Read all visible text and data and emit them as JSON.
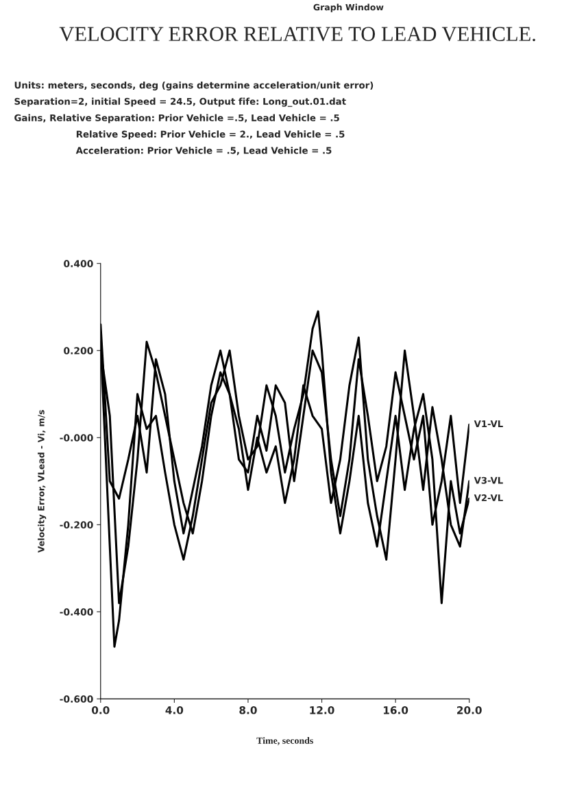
{
  "chart_data": {
    "type": "line",
    "title": "VELOCITY ERROR RELATIVE TO LEAD VEHICLE.",
    "annotations": [
      "Graph Window",
      "Units: meters, seconds, deg (gains determine acceleration/unit error)",
      "Separation=2, initial Speed = 24.5, Output fife: Long_out.01.dat",
      "Gains, Relative Separation: Prior Vehicle =.5, Lead Vehicle = .5",
      "Relative Speed: Prior Vehicle = 2., Lead Vehicle = .5",
      "Acceleration: Prior Vehicle = .5, Lead Vehicle = .5"
    ],
    "xlabel": "Time, seconds",
    "ylabel": "Velocity Error, VLead - Vi, m/s",
    "xlim": [
      0,
      20
    ],
    "ylim": [
      -0.6,
      0.4
    ],
    "xticks": [
      {
        "value": 0,
        "label": "0.0"
      },
      {
        "value": 4,
        "label": "4.0"
      },
      {
        "value": 8,
        "label": "8.0"
      },
      {
        "value": 12,
        "label": "12.0"
      },
      {
        "value": 16,
        "label": "16.0"
      },
      {
        "value": 20,
        "label": "20.0"
      }
    ],
    "yticks": [
      {
        "value": -0.6,
        "label": "-0.600"
      },
      {
        "value": -0.4,
        "label": "-0.400"
      },
      {
        "value": -0.2,
        "label": "-0.200"
      },
      {
        "value": 0,
        "label": "-0.000"
      },
      {
        "value": 0.2,
        "label": "0.200"
      },
      {
        "value": 0.4,
        "label": "0.400"
      }
    ],
    "grid": false,
    "legend": false,
    "marker": "none",
    "line_style": "solid",
    "series": [
      {
        "name": "V1-VL",
        "color": "#000000",
        "x": [
          0,
          0.5,
          1,
          1.5,
          2,
          2.5,
          3,
          3.5,
          4,
          4.5,
          5,
          5.5,
          6,
          6.5,
          7,
          7.5,
          8,
          8.5,
          9,
          9.5,
          10,
          10.5,
          11,
          11.5,
          12,
          12.5,
          13,
          13.5,
          14,
          14.5,
          15,
          15.5,
          16,
          16.5,
          17,
          17.5,
          18,
          18.5,
          19,
          19.5,
          20
        ],
        "values": [
          0.26,
          -0.1,
          -0.14,
          -0.05,
          0.05,
          -0.08,
          0.18,
          0.1,
          -0.1,
          -0.22,
          -0.12,
          -0.02,
          0.12,
          0.2,
          0.1,
          -0.05,
          -0.08,
          0.05,
          -0.03,
          0.12,
          0.08,
          -0.1,
          0.05,
          0.2,
          0.15,
          -0.05,
          -0.18,
          -0.05,
          0.18,
          0.05,
          -0.1,
          -0.02,
          0.15,
          0.05,
          -0.05,
          0.05,
          -0.2,
          -0.1,
          0.05,
          -0.15,
          0.03
        ]
      },
      {
        "name": "V2-VL",
        "color": "#000000",
        "x": [
          0,
          0.5,
          0.75,
          1,
          1.5,
          2,
          2.5,
          3,
          3.5,
          4,
          4.5,
          5,
          5.5,
          6,
          6.5,
          7,
          7.5,
          8,
          8.5,
          9,
          9.5,
          10,
          10.5,
          11,
          11.5,
          11.8,
          12,
          12.5,
          13,
          13.5,
          14,
          14.5,
          15,
          15.5,
          16,
          16.5,
          17,
          17.5,
          18,
          18.5,
          19,
          19.5,
          20
        ],
        "values": [
          0.22,
          -0.25,
          -0.48,
          -0.42,
          -0.2,
          0.1,
          0.02,
          0.05,
          -0.08,
          -0.2,
          -0.28,
          -0.18,
          -0.05,
          0.08,
          0.12,
          0.2,
          0.05,
          -0.05,
          -0.02,
          0.12,
          0.05,
          -0.08,
          0.02,
          0.1,
          0.25,
          0.29,
          0.2,
          -0.08,
          -0.22,
          -0.1,
          0.05,
          -0.15,
          -0.25,
          -0.1,
          0.05,
          -0.12,
          0.02,
          0.1,
          -0.05,
          -0.38,
          -0.1,
          -0.22,
          -0.14
        ]
      },
      {
        "name": "V3-VL",
        "color": "#000000",
        "x": [
          0,
          0.5,
          1,
          1.5,
          2,
          2.5,
          3,
          3.5,
          4,
          4.5,
          5,
          5.5,
          6,
          6.5,
          7,
          7.5,
          8,
          8.5,
          9,
          9.5,
          10,
          10.5,
          11,
          11.5,
          12,
          12.5,
          13,
          13.5,
          14,
          14.5,
          15,
          15.5,
          16,
          16.5,
          17,
          17.5,
          18,
          18.5,
          19,
          19.5,
          20
        ],
        "values": [
          0.2,
          0.05,
          -0.38,
          -0.25,
          -0.05,
          0.22,
          0.15,
          0.05,
          -0.05,
          -0.15,
          -0.22,
          -0.1,
          0.05,
          0.15,
          0.1,
          0.02,
          -0.12,
          0.0,
          -0.08,
          -0.02,
          -0.15,
          -0.05,
          0.12,
          0.05,
          0.02,
          -0.15,
          -0.05,
          0.12,
          0.23,
          -0.05,
          -0.18,
          -0.28,
          -0.05,
          0.2,
          0.05,
          -0.12,
          0.07,
          -0.05,
          -0.2,
          -0.25,
          -0.1
        ]
      }
    ]
  }
}
